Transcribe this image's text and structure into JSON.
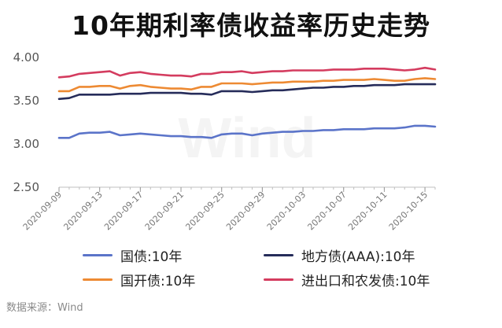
{
  "chart_data": {
    "type": "line",
    "title": "10年期利率债收益率历史走势",
    "source": "数据来源：Wind",
    "watermark": "Wind",
    "ylim": [
      2.5,
      4.0
    ],
    "yticks": [
      "4.00",
      "3.50",
      "3.00",
      "2.50"
    ],
    "ytick_values": [
      4.0,
      3.5,
      3.0,
      2.5
    ],
    "x": [
      "2020-09-09",
      "2020-09-10",
      "2020-09-11",
      "2020-09-12",
      "2020-09-13",
      "2020-09-14",
      "2020-09-15",
      "2020-09-16",
      "2020-09-17",
      "2020-09-18",
      "2020-09-19",
      "2020-09-20",
      "2020-09-21",
      "2020-09-22",
      "2020-09-23",
      "2020-09-24",
      "2020-09-25",
      "2020-09-26",
      "2020-09-27",
      "2020-09-28",
      "2020-09-29",
      "2020-09-30",
      "2020-10-01",
      "2020-10-02",
      "2020-10-03",
      "2020-10-04",
      "2020-10-05",
      "2020-10-06",
      "2020-10-07",
      "2020-10-08",
      "2020-10-09",
      "2020-10-10",
      "2020-10-11",
      "2020-10-12",
      "2020-10-13",
      "2020-10-14",
      "2020-10-15",
      "2020-10-16"
    ],
    "xticks": [
      "2020-09-09",
      "2020-09-13",
      "2020-09-17",
      "2020-09-21",
      "2020-09-25",
      "2020-09-29",
      "2020-10-03",
      "2020-10-07",
      "2020-10-11",
      "2020-10-15"
    ],
    "legend_placement": "bottom",
    "grid": false,
    "series": [
      {
        "name": "国债:10年",
        "color": "#5b74c9",
        "values": [
          3.07,
          3.07,
          3.12,
          3.13,
          3.13,
          3.14,
          3.1,
          3.11,
          3.12,
          3.11,
          3.1,
          3.09,
          3.09,
          3.08,
          3.08,
          3.07,
          3.11,
          3.12,
          3.12,
          3.1,
          3.12,
          3.13,
          3.14,
          3.14,
          3.15,
          3.15,
          3.16,
          3.16,
          3.17,
          3.17,
          3.17,
          3.18,
          3.18,
          3.18,
          3.19,
          3.21,
          3.21,
          3.2
        ]
      },
      {
        "name": "地方债(AAA):10年",
        "color": "#262c5a",
        "values": [
          3.52,
          3.53,
          3.57,
          3.57,
          3.57,
          3.57,
          3.58,
          3.58,
          3.58,
          3.59,
          3.59,
          3.59,
          3.59,
          3.58,
          3.58,
          3.57,
          3.61,
          3.61,
          3.61,
          3.6,
          3.61,
          3.62,
          3.62,
          3.63,
          3.64,
          3.65,
          3.65,
          3.66,
          3.66,
          3.67,
          3.67,
          3.68,
          3.68,
          3.68,
          3.69,
          3.69,
          3.69,
          3.69
        ]
      },
      {
        "name": "国开债:10年",
        "color": "#ed8a33",
        "values": [
          3.61,
          3.61,
          3.66,
          3.66,
          3.67,
          3.67,
          3.64,
          3.67,
          3.68,
          3.66,
          3.65,
          3.64,
          3.64,
          3.63,
          3.66,
          3.66,
          3.7,
          3.7,
          3.7,
          3.69,
          3.7,
          3.71,
          3.71,
          3.72,
          3.72,
          3.72,
          3.73,
          3.73,
          3.74,
          3.74,
          3.74,
          3.75,
          3.74,
          3.73,
          3.73,
          3.75,
          3.76,
          3.75
        ]
      },
      {
        "name": "进出口和农发债:10年",
        "color": "#d43c5f",
        "values": [
          3.77,
          3.78,
          3.81,
          3.82,
          3.83,
          3.84,
          3.79,
          3.82,
          3.83,
          3.81,
          3.8,
          3.79,
          3.79,
          3.78,
          3.81,
          3.81,
          3.83,
          3.83,
          3.84,
          3.82,
          3.83,
          3.84,
          3.84,
          3.85,
          3.85,
          3.85,
          3.85,
          3.86,
          3.86,
          3.86,
          3.87,
          3.87,
          3.87,
          3.86,
          3.85,
          3.86,
          3.88,
          3.86
        ]
      }
    ]
  }
}
